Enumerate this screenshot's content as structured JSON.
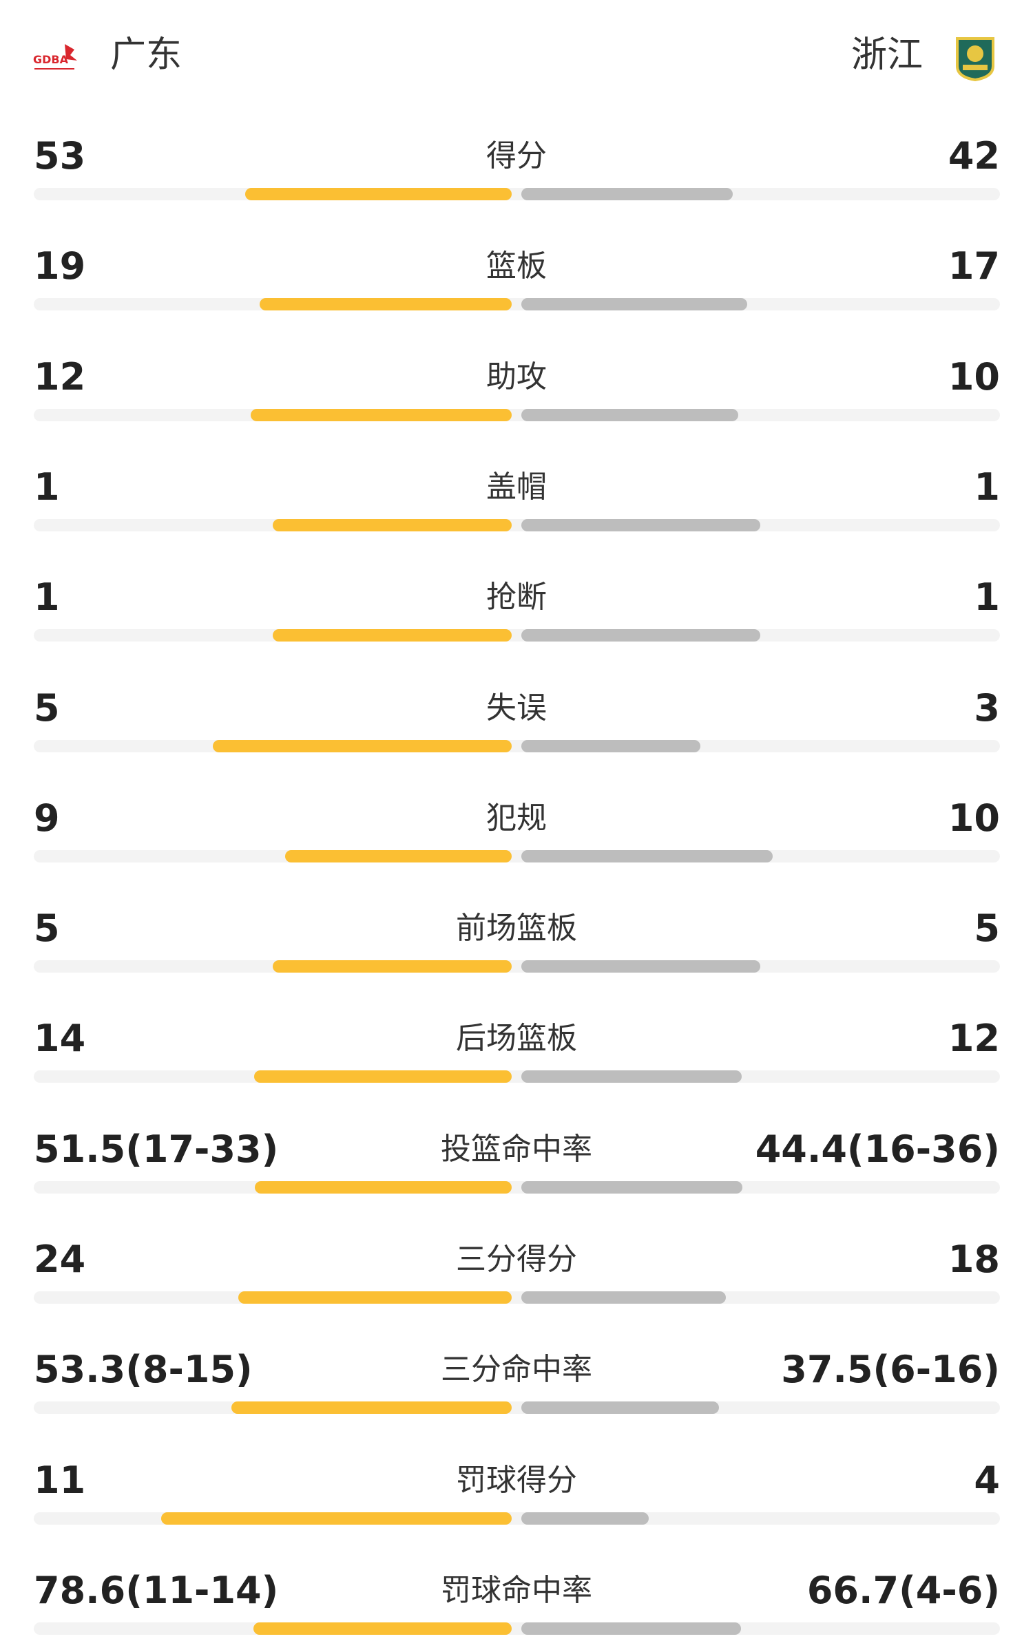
{
  "header": {
    "home": {
      "name": "广东",
      "logo_text": "GDBA"
    },
    "away": {
      "name": "浙江"
    }
  },
  "stats": {
    "home_color": "#fbbf33",
    "away_color": "#bdbdbd",
    "rows": [
      {
        "label": "得分",
        "home": 53,
        "away": 42
      },
      {
        "label": "篮板",
        "home": 19,
        "away": 17
      },
      {
        "label": "助攻",
        "home": 12,
        "away": 10
      },
      {
        "label": "盖帽",
        "home": 1,
        "away": 1
      },
      {
        "label": "抢断",
        "home": 1,
        "away": 1
      },
      {
        "label": "失误",
        "home": 5,
        "away": 3
      },
      {
        "label": "犯规",
        "home": 9,
        "away": 10
      },
      {
        "label": "前场篮板",
        "home": 5,
        "away": 5
      },
      {
        "label": "后场篮板",
        "home": 14,
        "away": 12
      },
      {
        "label": "投篮命中率",
        "home": {
          "value": 51.5,
          "label": "51.5(17-33)"
        },
        "away": {
          "value": 44.4,
          "label": "44.4(16-36)"
        }
      },
      {
        "label": "三分得分",
        "home": 24,
        "away": 18
      },
      {
        "label": "三分命中率",
        "home": {
          "value": 53.3,
          "label": "53.3(8-15)"
        },
        "away": {
          "value": 37.5,
          "label": "37.5(6-16)"
        }
      },
      {
        "label": "罚球得分",
        "home": 11,
        "away": 4
      },
      {
        "label": "罚球命中率",
        "home": {
          "value": 78.6,
          "label": "78.6(11-14)"
        },
        "away": {
          "value": 66.7,
          "label": "66.7(4-6)"
        }
      }
    ]
  }
}
